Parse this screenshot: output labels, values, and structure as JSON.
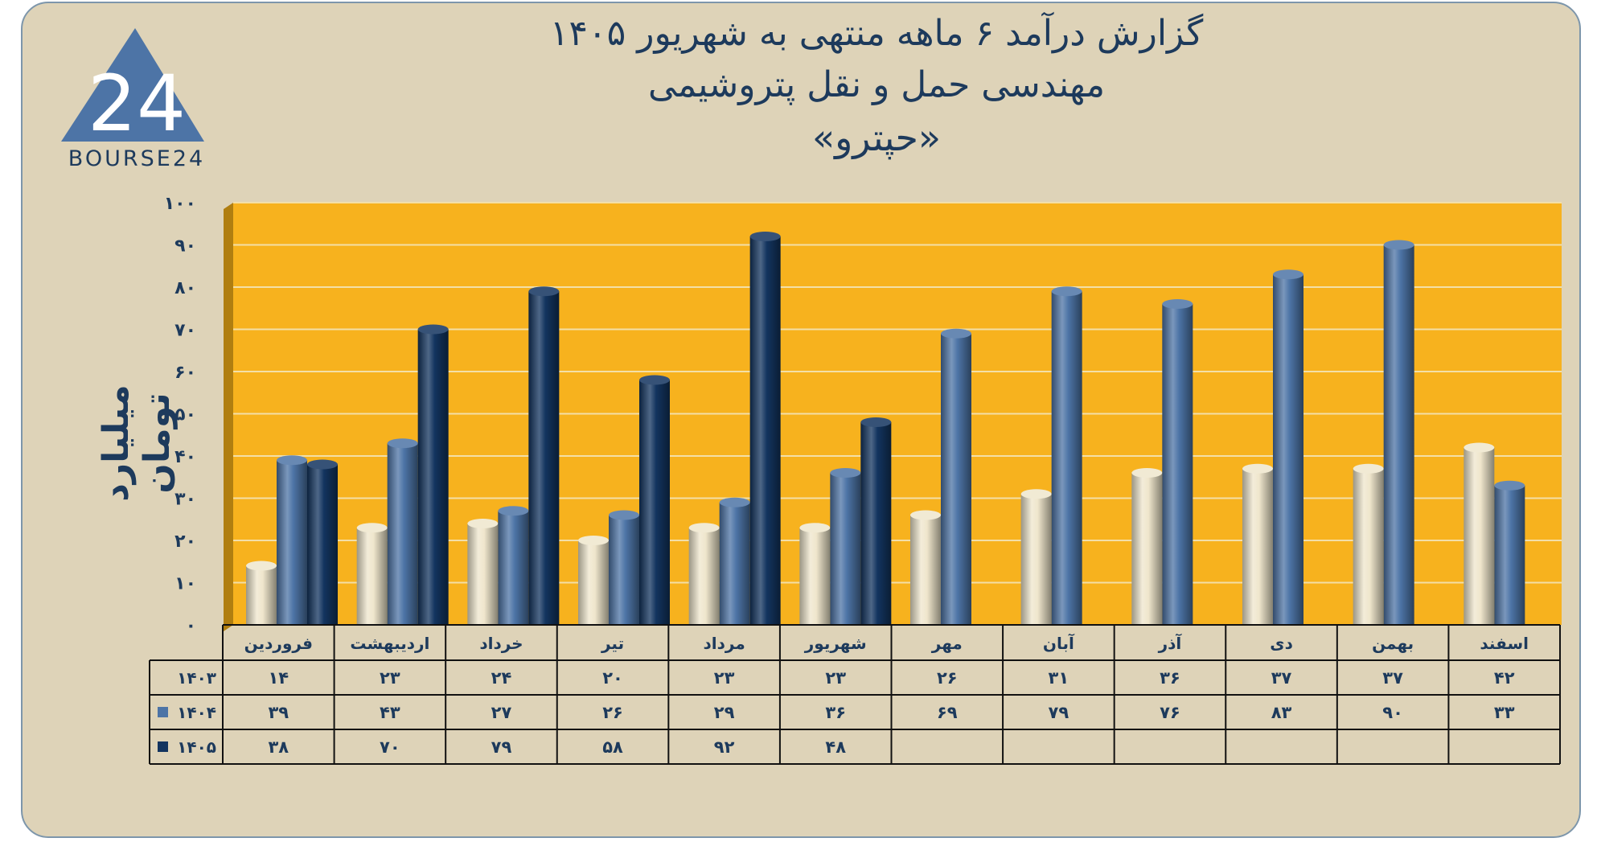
{
  "header": {
    "title_line1": "گزارش  درآمد ۶ ماهه منتهی به شهریور ۱۴۰۵",
    "title_line2": "مهندسی حمل و نقل پتروشیمی",
    "title_line3": "«حپترو»"
  },
  "logo": {
    "text": "BOURSE24",
    "mark": "24"
  },
  "colors": {
    "plot_background": "#f7b21e",
    "card_background": "#ded3b8",
    "series_1403": "#efe6cc",
    "series_1404": "#4d74a6",
    "series_1405": "#13345f",
    "text": "#1d3a5c"
  },
  "chart_data": {
    "type": "bar",
    "title": "",
    "xlabel": "",
    "ylabel": "میلیارد تومان",
    "ylim": [
      0,
      100
    ],
    "yticks": [
      "۰",
      "۱۰",
      "۲۰",
      "۳۰",
      "۴۰",
      "۵۰",
      "۶۰",
      "۷۰",
      "۸۰",
      "۹۰",
      "۱۰۰"
    ],
    "grid": true,
    "legend_placement": "data-table",
    "categories": [
      "فروردین",
      "اردیبهشت",
      "خرداد",
      "تیر",
      "مرداد",
      "شهریور",
      "مهر",
      "آبان",
      "آذر",
      "دی",
      "بهمن",
      "اسفند"
    ],
    "series": [
      {
        "name": "۱۴۰۳",
        "values": [
          14,
          23,
          24,
          20,
          23,
          23,
          26,
          31,
          36,
          37,
          37,
          42
        ],
        "labels": [
          "۱۴",
          "۲۳",
          "۲۴",
          "۲۰",
          "۲۳",
          "۲۳",
          "۲۶",
          "۳۱",
          "۳۶",
          "۳۷",
          "۳۷",
          "۴۲"
        ]
      },
      {
        "name": "۱۴۰۴",
        "values": [
          39,
          43,
          27,
          26,
          29,
          36,
          69,
          79,
          76,
          83,
          90,
          33
        ],
        "labels": [
          "۳۹",
          "۴۳",
          "۲۷",
          "۲۶",
          "۲۹",
          "۳۶",
          "۶۹",
          "۷۹",
          "۷۶",
          "۸۳",
          "۹۰",
          "۳۳"
        ]
      },
      {
        "name": "۱۴۰۵",
        "values": [
          38,
          70,
          79,
          58,
          92,
          48,
          null,
          null,
          null,
          null,
          null,
          null
        ],
        "labels": [
          "۳۸",
          "۷۰",
          "۷۹",
          "۵۸",
          "۹۲",
          "۴۸",
          "",
          "",
          "",
          "",
          "",
          ""
        ]
      }
    ]
  }
}
